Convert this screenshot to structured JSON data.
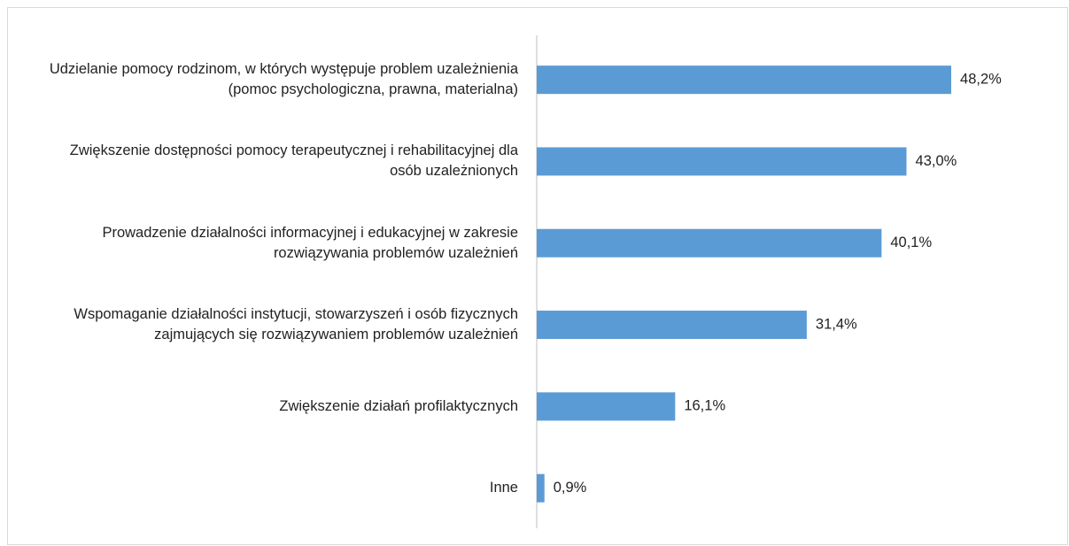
{
  "chart_data": {
    "type": "bar",
    "orientation": "horizontal",
    "categories": [
      "Udzielanie pomocy rodzinom, w których występuje problem uzależnienia (pomoc psychologiczna, prawna, materialna)",
      "Zwiększenie dostępności pomocy terapeutycznej i rehabilitacyjnej dla osób uzależnionych",
      "Prowadzenie działalności informacyjnej i edukacyjnej w zakresie rozwiązywania problemów uzależnień",
      "Wspomaganie działalności instytucji, stowarzyszeń i osób fizycznych zajmujących się rozwiązywaniem problemów uzależnień",
      "Zwiększenie działań profilaktycznych",
      "Inne"
    ],
    "values": [
      48.2,
      43.0,
      40.1,
      31.4,
      16.1,
      0.9
    ],
    "value_labels": [
      "48,2%",
      "43,0%",
      "40,1%",
      "31,4%",
      "16,1%",
      "0,9%"
    ],
    "color": "#5b9bd5"
  }
}
